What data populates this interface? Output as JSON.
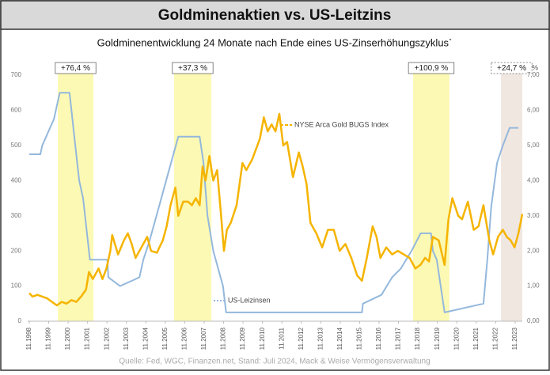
{
  "chart_data": {
    "type": "line",
    "title": "Goldminenaktien vs. US-Leitzins",
    "subtitle": "Goldminenentwicklung 24 Monate nach Ende eines US-Zinserhöhungszyklus`",
    "source": "Quelle: Fed, WGC, Finanzen.net, Stand: Juli 2024, Mack & Weise Vermögensverwaltung",
    "y2_unit": "%",
    "xlim": [
      1998.75,
      2024.2
    ],
    "ylim": [
      0,
      700
    ],
    "y2lim": [
      0,
      7
    ],
    "grid": false,
    "xticks": [
      {
        "value": 1998.83,
        "label": "11.1998"
      },
      {
        "value": 1999.83,
        "label": "11.1999"
      },
      {
        "value": 2000.83,
        "label": "11.2000"
      },
      {
        "value": 2001.83,
        "label": "11.2001"
      },
      {
        "value": 2002.83,
        "label": "11.2002"
      },
      {
        "value": 2003.83,
        "label": "11.2003"
      },
      {
        "value": 2004.83,
        "label": "11.2004"
      },
      {
        "value": 2005.83,
        "label": "11.2005"
      },
      {
        "value": 2006.83,
        "label": "11.2006"
      },
      {
        "value": 2007.83,
        "label": "11.2007"
      },
      {
        "value": 2008.83,
        "label": "11.2008"
      },
      {
        "value": 2009.83,
        "label": "11.2009"
      },
      {
        "value": 2010.83,
        "label": "11.2010"
      },
      {
        "value": 2011.83,
        "label": "11.2011"
      },
      {
        "value": 2012.83,
        "label": "11.2012"
      },
      {
        "value": 2013.83,
        "label": "11.2013"
      },
      {
        "value": 2014.83,
        "label": "11.2014"
      },
      {
        "value": 2015.83,
        "label": "11.2015"
      },
      {
        "value": 2016.83,
        "label": "11.2016"
      },
      {
        "value": 2017.83,
        "label": "11.2017"
      },
      {
        "value": 2018.83,
        "label": "11.2018"
      },
      {
        "value": 2019.83,
        "label": "11.2019"
      },
      {
        "value": 2020.83,
        "label": "11.2020"
      },
      {
        "value": 2021.83,
        "label": "11.2021"
      },
      {
        "value": 2022.83,
        "label": "11.2022"
      },
      {
        "value": 2023.83,
        "label": "11.2023"
      }
    ],
    "yticks": [
      0,
      100,
      200,
      300,
      400,
      500,
      600,
      700
    ],
    "y2ticks": [
      {
        "value": 0,
        "label": "0,00"
      },
      {
        "value": 1,
        "label": "1,00"
      },
      {
        "value": 2,
        "label": "2,00"
      },
      {
        "value": 3,
        "label": "3,00"
      },
      {
        "value": 4,
        "label": "4,00"
      },
      {
        "value": 5,
        "label": "5,00"
      },
      {
        "value": 6,
        "label": "6,00"
      },
      {
        "value": 7,
        "label": "7,00"
      }
    ],
    "bands": [
      {
        "start": 2000.3,
        "end": 2002.13,
        "label": "+76,4 %",
        "color": "#fcf9b4"
      },
      {
        "start": 2006.28,
        "end": 2008.2,
        "label": "+37,3 %",
        "color": "#fcf9b4"
      },
      {
        "start": 2018.58,
        "end": 2020.45,
        "label": "+100,9 %",
        "color": "#fcf9b4"
      },
      {
        "start": 2023.1,
        "end": 2024.2,
        "label": "+24,7 %",
        "color": "#f1e7e1"
      }
    ],
    "series": [
      {
        "name": "US-Leizinsen",
        "color": "#94b8dc",
        "axis": "y2",
        "x": [
          1998.83,
          1999.4,
          1999.5,
          1999.7,
          1999.9,
          2000.1,
          2000.2,
          2000.4,
          2000.9,
          2001.0,
          2001.1,
          2001.3,
          2001.4,
          2001.6,
          2001.8,
          2001.95,
          2002.85,
          2002.9,
          2003.5,
          2004.5,
          2004.7,
          2005.0,
          2005.5,
          2006.0,
          2006.5,
          2007.6,
          2007.8,
          2008.0,
          2008.3,
          2008.8,
          2008.96,
          2015.95,
          2016.0,
          2016.95,
          2017.5,
          2017.95,
          2018.5,
          2018.97,
          2019.5,
          2019.6,
          2019.8,
          2020.2,
          2022.2,
          2022.4,
          2022.6,
          2022.9,
          2023.2,
          2023.55,
          2024.0
        ],
        "values": [
          4.75,
          4.75,
          5.0,
          5.25,
          5.5,
          5.75,
          6.0,
          6.5,
          6.5,
          6.0,
          5.5,
          4.5,
          4.0,
          3.5,
          2.5,
          1.75,
          1.75,
          1.25,
          1.0,
          1.25,
          1.75,
          2.25,
          3.25,
          4.25,
          5.25,
          5.25,
          4.5,
          3.0,
          2.0,
          1.0,
          0.25,
          0.25,
          0.5,
          0.75,
          1.25,
          1.5,
          2.0,
          2.5,
          2.5,
          2.0,
          1.75,
          0.25,
          0.5,
          1.75,
          3.25,
          4.5,
          5.0,
          5.5,
          5.5
        ]
      },
      {
        "name": "NYSE Arca Gold BUGS Index",
        "color": "#f5b400",
        "axis": "y",
        "x": [
          1998.83,
          1999.0,
          1999.25,
          1999.5,
          1999.75,
          2000.0,
          2000.25,
          2000.5,
          2000.75,
          2001.0,
          2001.25,
          2001.5,
          2001.75,
          2001.9,
          2002.1,
          2002.4,
          2002.6,
          2002.8,
          2003.0,
          2003.1,
          2003.4,
          2003.7,
          2003.9,
          2004.1,
          2004.3,
          2004.6,
          2004.9,
          2005.1,
          2005.4,
          2005.7,
          2005.9,
          2006.1,
          2006.35,
          2006.5,
          2006.75,
          2007.0,
          2007.2,
          2007.4,
          2007.6,
          2007.75,
          2007.9,
          2008.1,
          2008.3,
          2008.5,
          2008.7,
          2008.85,
          2009.0,
          2009.2,
          2009.5,
          2009.8,
          2010.0,
          2010.3,
          2010.5,
          2010.7,
          2010.9,
          2011.1,
          2011.3,
          2011.5,
          2011.7,
          2011.9,
          2012.1,
          2012.4,
          2012.7,
          2012.9,
          2013.1,
          2013.3,
          2013.6,
          2013.9,
          2014.2,
          2014.5,
          2014.8,
          2015.1,
          2015.4,
          2015.7,
          2015.95,
          2016.2,
          2016.5,
          2016.7,
          2016.9,
          2017.2,
          2017.5,
          2017.8,
          2018.1,
          2018.4,
          2018.7,
          2018.95,
          2019.2,
          2019.4,
          2019.6,
          2019.9,
          2020.2,
          2020.4,
          2020.6,
          2020.9,
          2021.1,
          2021.4,
          2021.7,
          2021.95,
          2022.2,
          2022.5,
          2022.7,
          2022.95,
          2023.2,
          2023.4,
          2023.6,
          2023.8,
          2024.0,
          2024.2
        ],
        "values": [
          80,
          70,
          75,
          70,
          65,
          55,
          45,
          55,
          50,
          60,
          55,
          70,
          90,
          140,
          120,
          150,
          120,
          150,
          200,
          245,
          190,
          230,
          250,
          220,
          180,
          210,
          240,
          200,
          195,
          230,
          270,
          330,
          380,
          300,
          340,
          340,
          330,
          350,
          330,
          440,
          400,
          470,
          400,
          430,
          300,
          200,
          260,
          280,
          330,
          450,
          430,
          460,
          490,
          520,
          580,
          540,
          560,
          540,
          590,
          500,
          510,
          410,
          480,
          440,
          390,
          280,
          250,
          210,
          260,
          260,
          200,
          220,
          180,
          130,
          115,
          180,
          270,
          240,
          180,
          210,
          190,
          200,
          190,
          180,
          150,
          160,
          180,
          170,
          240,
          230,
          160,
          290,
          350,
          300,
          290,
          340,
          260,
          270,
          330,
          230,
          190,
          240,
          260,
          240,
          230,
          210,
          250,
          305
        ]
      }
    ]
  }
}
